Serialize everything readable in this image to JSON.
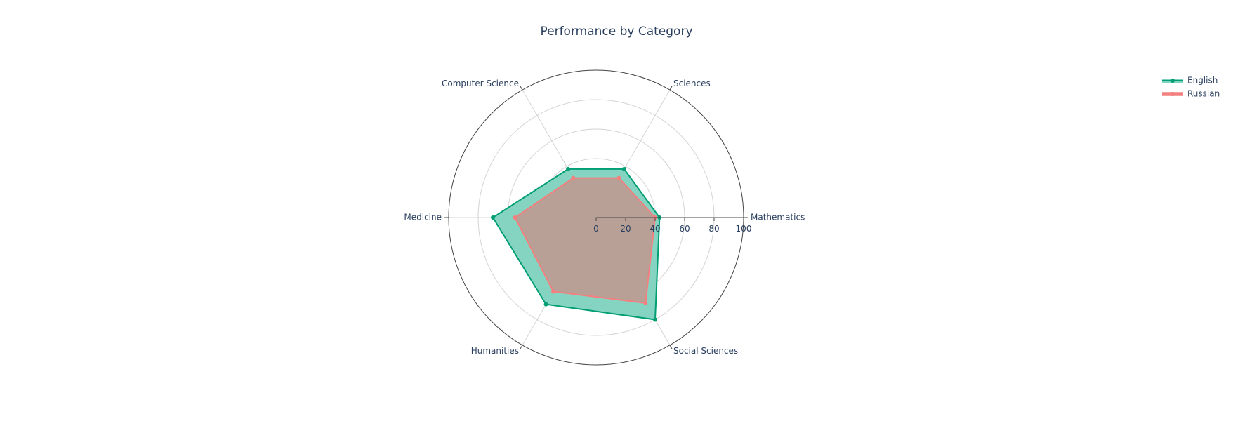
{
  "chart_data": {
    "type": "radar",
    "title": "Performance by Category",
    "categories": [
      "Mathematics",
      "Sciences",
      "Computer Science",
      "Medicine",
      "Humanities",
      "Social Sciences"
    ],
    "radial_range": [
      0,
      100
    ],
    "radial_ticks": [
      "0",
      "20",
      "40",
      "60",
      "80",
      "100"
    ],
    "grid": true,
    "legend_position": "top-right",
    "series": [
      {
        "name": "English",
        "values": [
          43,
          38,
          38,
          70,
          68,
          80
        ],
        "line_color": "#009e73",
        "fill_color": "#7ed2bf"
      },
      {
        "name": "Russian",
        "values": [
          40,
          31,
          31,
          55,
          58,
          67
        ],
        "line_color": "#f47f7f",
        "fill_color": "#f4a2a2"
      }
    ]
  }
}
